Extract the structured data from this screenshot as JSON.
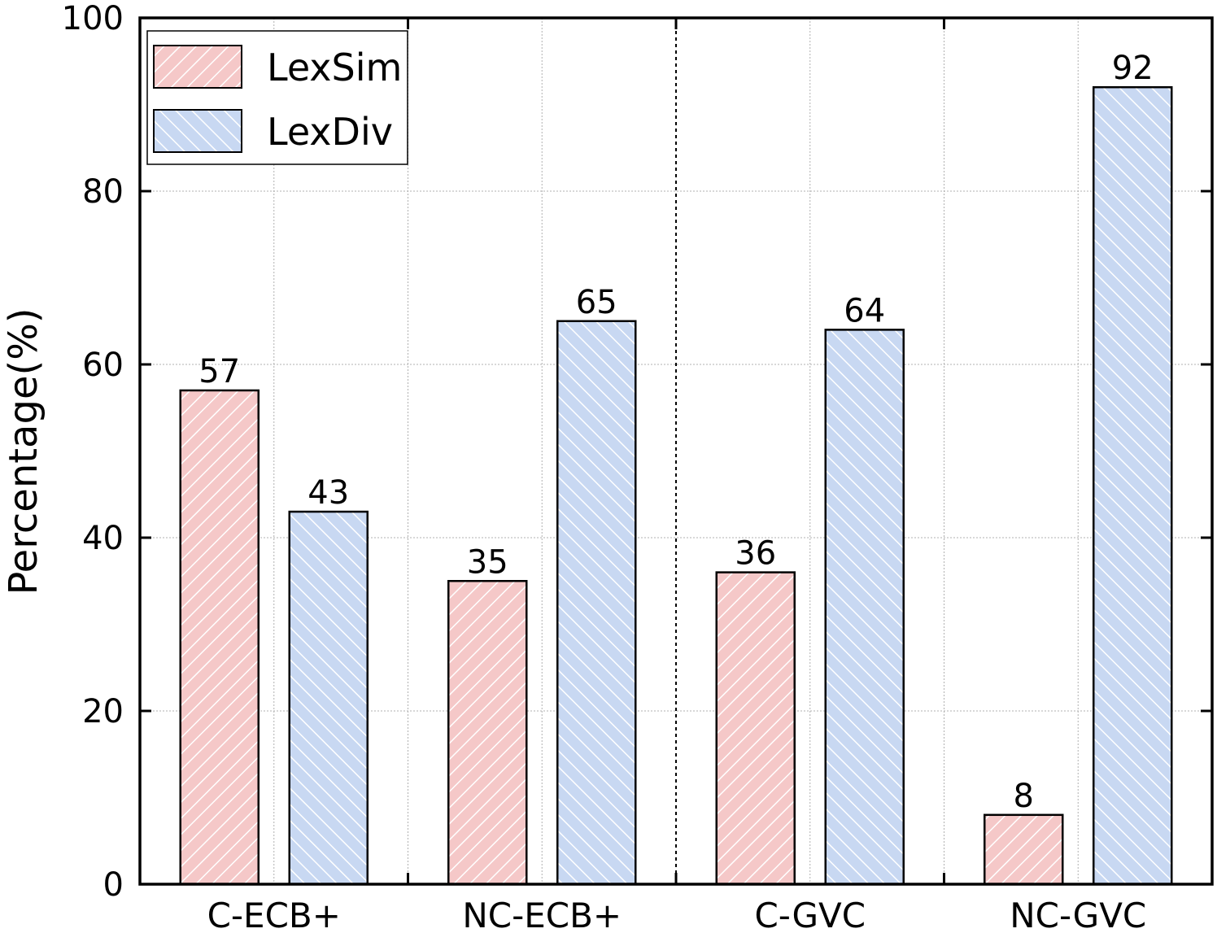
{
  "chart_data": {
    "type": "bar",
    "title": "",
    "xlabel": "",
    "ylabel": "Percentage(%)",
    "ylim": [
      0,
      100
    ],
    "yticks": [
      0,
      20,
      40,
      60,
      80,
      100
    ],
    "grid": true,
    "categories": [
      "C-ECB+",
      "NC-ECB+",
      "C-GVC",
      "NC-GVC"
    ],
    "series": [
      {
        "name": "LexSim",
        "values": [
          57,
          35,
          36,
          8
        ],
        "color": "#f5c8c8",
        "hatch": "diagonal-forward"
      },
      {
        "name": "LexDiv",
        "values": [
          43,
          65,
          64,
          92
        ],
        "color": "#c8d8f2",
        "hatch": "diagonal-back"
      }
    ],
    "legend": {
      "position": "top-left"
    },
    "group_separator_after_category": 1
  }
}
